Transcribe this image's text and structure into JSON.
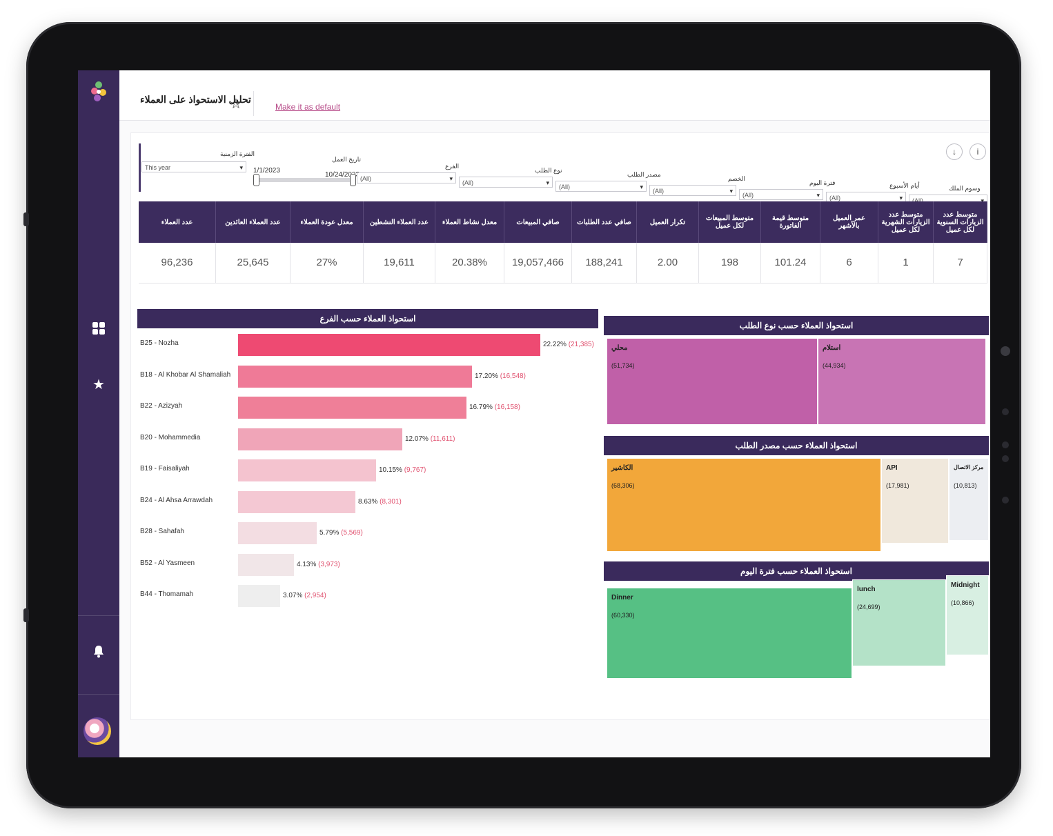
{
  "header": {
    "title": "تحليل الاستحواذ على العملاء",
    "default_link": "Make it as default"
  },
  "sidebar": {
    "icons": [
      "flower-logo",
      "dashboard-icon",
      "star-icon",
      "bell-icon",
      "avatar"
    ]
  },
  "toolbar": {
    "download_icon": "↓",
    "info_icon": "i"
  },
  "filters": {
    "period_label": "الفترة الزمنية",
    "period_value": "This year",
    "workdate_label": "تاريخ العمل",
    "date_start": "1/1/2023",
    "date_end": "10/24/2023",
    "branch_label": "الفرع",
    "order_type_label": "نوع الطلب",
    "order_source_label": "مصدر الطلب",
    "discount_label": "الخصم",
    "day_period_label": "فترة اليوم",
    "weekday_label": "أيام الأسبوع",
    "tags_label": "وسوم الملك",
    "all_value": "(All)"
  },
  "kpis": [
    {
      "label": "عدد العملاء",
      "value": "96,236"
    },
    {
      "label": "عدد العملاء العائدين",
      "value": "25,645"
    },
    {
      "label": "معدل عودة العملاء",
      "value": "27%"
    },
    {
      "label": "عدد العملاء النشطين",
      "value": "19,611"
    },
    {
      "label": "معدل نشاط العملاء",
      "value": "20.38%"
    },
    {
      "label": "صافي المبيعات",
      "value": "19,057,466"
    },
    {
      "label": "صافي عدد الطلبات",
      "value": "188,241"
    },
    {
      "label": "تكرار العميل",
      "value": "2.00"
    },
    {
      "label": "متوسط المبيعات لكل عميل",
      "value": "198"
    },
    {
      "label": "متوسط قيمة الفاتورة",
      "value": "101.24"
    },
    {
      "label": "عمر العميل بالأشهر",
      "value": "6"
    },
    {
      "label": "متوسط عدد الزيارات الشهرية لكل عميل",
      "value": "1"
    },
    {
      "label": "متوسط عدد الزيارات السنوية لكل عميل",
      "value": "7"
    }
  ],
  "branch_chart": {
    "title": "استحواذ العملاء حسب الفرع"
  },
  "chart_data": {
    "type": "bar",
    "title": "استحواذ العملاء حسب الفرع",
    "categories": [
      "B25 - Nozha",
      "B18 - Al Khobar Al Shamaliah",
      "B22 - Azizyah",
      "B20 - Mohammedia",
      "B19 - Faisaliyah",
      "B24 - Al Ahsa Arrawdah",
      "B28 - Sahafah",
      "B52 - Al Yasmeen",
      "B44 - Thomamah"
    ],
    "values": [
      21385,
      16548,
      16158,
      11611,
      9767,
      8301,
      5569,
      3973,
      2954
    ],
    "percent_labels": [
      "22.22%",
      "17.20%",
      "16.79%",
      "12.07%",
      "10.15%",
      "8.63%",
      "5.79%",
      "4.13%",
      "3.07%"
    ],
    "count_labels": [
      "(21,385)",
      "(16,548)",
      "(16,158)",
      "(11,611)",
      "(9,767)",
      "(8,301)",
      "(5,569)",
      "(3,973)",
      "(2,954)"
    ],
    "colors": [
      "#ee4a72",
      "#ef7a97",
      "#ef7f98",
      "#f0a5b8",
      "#f4c3cf",
      "#f4c8d3",
      "#f3dde2",
      "#f1e6e8",
      "#eeeeee"
    ]
  },
  "order_type": {
    "title": "استحواذ العملاء حسب نوع الطلب",
    "items": [
      {
        "name": "محلي",
        "count": "(51,734)",
        "color": "#c060a8"
      },
      {
        "name": "استلام",
        "count": "(44,934)",
        "color": "#c874b4"
      }
    ]
  },
  "order_source": {
    "title": "استحواذ العملاء حسب مصدر الطلب",
    "items": [
      {
        "name": "الكاشير",
        "count": "(68,306)",
        "color": "#f2a73a"
      },
      {
        "name": "API",
        "count": "(17,981)",
        "color": "#f0e8dc"
      },
      {
        "name": "مركز الاتصال",
        "count": "(10,813)",
        "color": "#eceef2"
      }
    ]
  },
  "day_period": {
    "title": "استحواذ العملاء حسب فترة اليوم",
    "items": [
      {
        "name": "Dinner",
        "count": "(60,330)",
        "color": "#56c084"
      },
      {
        "name": "lunch",
        "count": "(24,699)",
        "color": "#b4e2c8"
      },
      {
        "name": "Midnight",
        "count": "(10,866)",
        "color": "#d8efe2"
      }
    ]
  }
}
